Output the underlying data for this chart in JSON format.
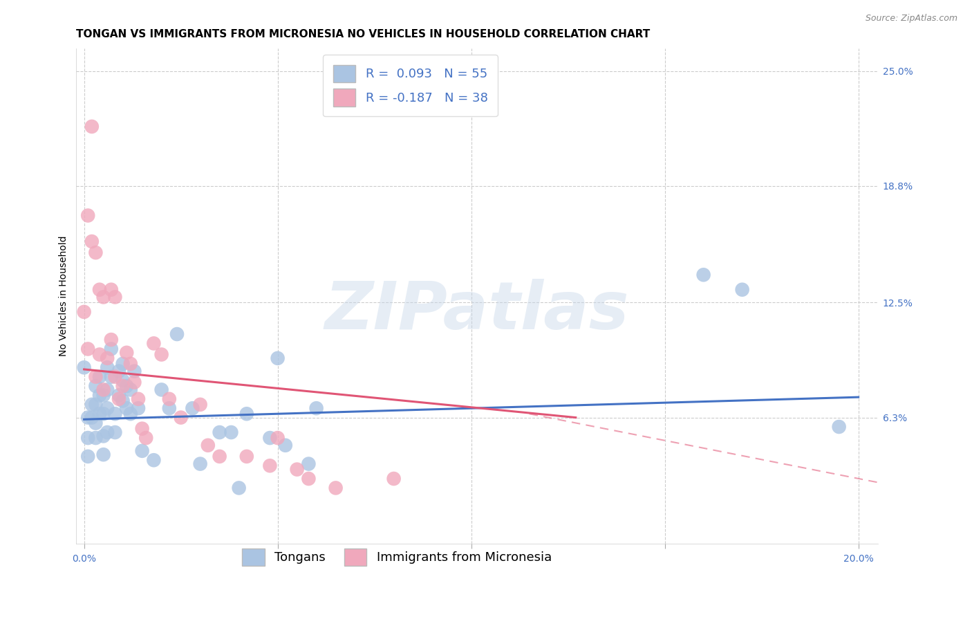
{
  "title": "TONGAN VS IMMIGRANTS FROM MICRONESIA NO VEHICLES IN HOUSEHOLD CORRELATION CHART",
  "source": "Source: ZipAtlas.com",
  "ylabel": "No Vehicles in Household",
  "xlim": [
    -0.002,
    0.205
  ],
  "ylim": [
    -0.005,
    0.262
  ],
  "plot_xlim": [
    0.0,
    0.2
  ],
  "xtick_vals": [
    0.0,
    0.05,
    0.1,
    0.15,
    0.2
  ],
  "xtick_labels": [
    "0.0%",
    "",
    "",
    "",
    "20.0%"
  ],
  "ytick_vals_right": [
    0.063,
    0.125,
    0.188,
    0.25
  ],
  "ytick_labels_right": [
    "6.3%",
    "12.5%",
    "18.8%",
    "25.0%"
  ],
  "blue_R": 0.093,
  "blue_N": 55,
  "pink_R": -0.187,
  "pink_N": 38,
  "blue_dot_color": "#aac4e2",
  "pink_dot_color": "#f0a8bc",
  "blue_line_color": "#4472c4",
  "pink_line_color": "#e05575",
  "legend_label_blue": "Tongans",
  "legend_label_pink": "Immigrants from Micronesia",
  "grid_color": "#cccccc",
  "background_color": "#ffffff",
  "blue_x": [
    0.0,
    0.001,
    0.001,
    0.001,
    0.002,
    0.002,
    0.003,
    0.003,
    0.003,
    0.003,
    0.004,
    0.004,
    0.004,
    0.005,
    0.005,
    0.005,
    0.005,
    0.006,
    0.006,
    0.006,
    0.006,
    0.007,
    0.007,
    0.008,
    0.008,
    0.009,
    0.009,
    0.01,
    0.01,
    0.01,
    0.011,
    0.011,
    0.012,
    0.012,
    0.013,
    0.014,
    0.015,
    0.018,
    0.02,
    0.022,
    0.024,
    0.028,
    0.03,
    0.035,
    0.038,
    0.04,
    0.042,
    0.048,
    0.05,
    0.052,
    0.058,
    0.06,
    0.16,
    0.17,
    0.195
  ],
  "blue_y": [
    0.09,
    0.063,
    0.052,
    0.042,
    0.07,
    0.063,
    0.08,
    0.07,
    0.06,
    0.052,
    0.085,
    0.075,
    0.065,
    0.075,
    0.065,
    0.053,
    0.043,
    0.09,
    0.078,
    0.068,
    0.055,
    0.1,
    0.085,
    0.065,
    0.055,
    0.088,
    0.075,
    0.092,
    0.083,
    0.072,
    0.08,
    0.068,
    0.078,
    0.065,
    0.088,
    0.068,
    0.045,
    0.04,
    0.078,
    0.068,
    0.108,
    0.068,
    0.038,
    0.055,
    0.055,
    0.025,
    0.065,
    0.052,
    0.095,
    0.048,
    0.038,
    0.068,
    0.14,
    0.132,
    0.058
  ],
  "pink_x": [
    0.0,
    0.001,
    0.001,
    0.002,
    0.002,
    0.003,
    0.003,
    0.004,
    0.004,
    0.005,
    0.005,
    0.006,
    0.007,
    0.007,
    0.008,
    0.008,
    0.009,
    0.01,
    0.011,
    0.012,
    0.013,
    0.014,
    0.015,
    0.016,
    0.018,
    0.02,
    0.022,
    0.025,
    0.03,
    0.032,
    0.035,
    0.042,
    0.048,
    0.05,
    0.055,
    0.058,
    0.065,
    0.08
  ],
  "pink_y": [
    0.12,
    0.1,
    0.172,
    0.158,
    0.22,
    0.152,
    0.085,
    0.132,
    0.097,
    0.128,
    0.078,
    0.095,
    0.132,
    0.105,
    0.085,
    0.128,
    0.073,
    0.08,
    0.098,
    0.092,
    0.082,
    0.073,
    0.057,
    0.052,
    0.103,
    0.097,
    0.073,
    0.063,
    0.07,
    0.048,
    0.042,
    0.042,
    0.037,
    0.052,
    0.035,
    0.03,
    0.025,
    0.03
  ],
  "blue_trend": [
    0.0,
    0.2,
    0.062,
    0.074
  ],
  "pink_solid_trend": [
    0.0,
    0.127,
    0.089,
    0.063
  ],
  "pink_dash_trend": [
    0.115,
    0.205,
    0.065,
    0.028
  ],
  "watermark_text": "ZIPatlas",
  "title_fontsize": 11,
  "source_fontsize": 9,
  "tick_fontsize": 10,
  "legend_fontsize": 13
}
